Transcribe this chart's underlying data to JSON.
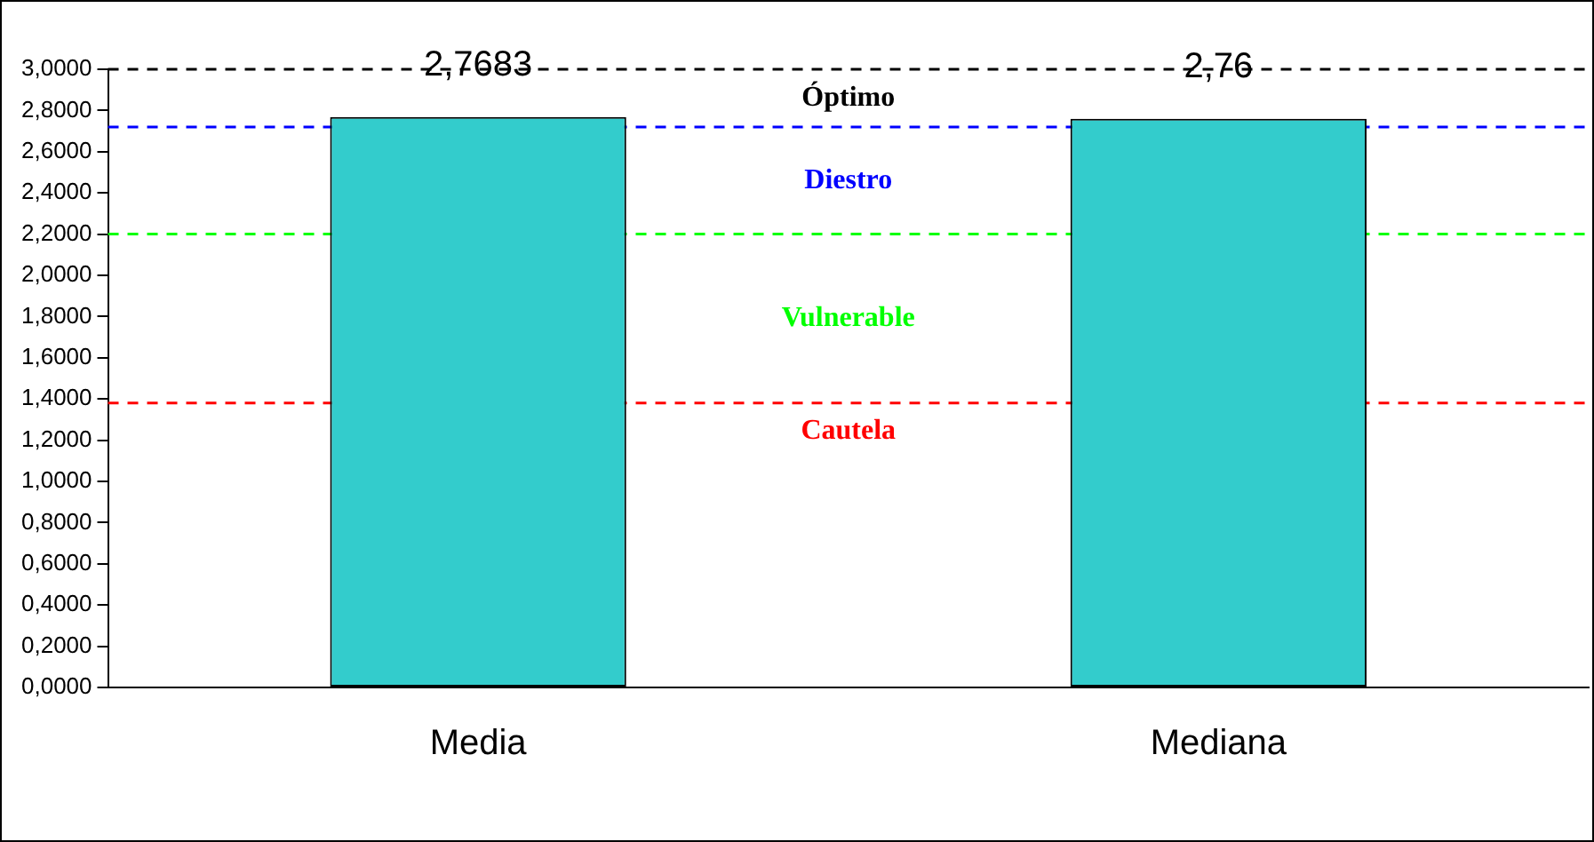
{
  "chart_data": {
    "type": "bar",
    "categories": [
      "Media",
      "Mediana"
    ],
    "values": [
      2.7683,
      2.76
    ],
    "value_labels": [
      "2,7683",
      "2,76"
    ],
    "color": "#33cccc",
    "ylim": [
      0,
      3
    ],
    "yticks": [
      {
        "value": 0,
        "label": "0,0000"
      },
      {
        "value": 0.2,
        "label": "0,2000"
      },
      {
        "value": 0.4,
        "label": "0,4000"
      },
      {
        "value": 0.6,
        "label": "0,6000"
      },
      {
        "value": 0.8,
        "label": "0,8000"
      },
      {
        "value": 1,
        "label": "1,0000"
      },
      {
        "value": 1.2,
        "label": "1,2000"
      },
      {
        "value": 1.4,
        "label": "1,4000"
      },
      {
        "value": 1.6,
        "label": "1,6000"
      },
      {
        "value": 1.8,
        "label": "1,8000"
      },
      {
        "value": 2,
        "label": "2,0000"
      },
      {
        "value": 2.2,
        "label": "2,2000"
      },
      {
        "value": 2.4,
        "label": "2,4000"
      },
      {
        "value": 2.6,
        "label": "2,6000"
      },
      {
        "value": 2.8,
        "label": "2,8000"
      },
      {
        "value": 3,
        "label": "3,0000"
      }
    ],
    "ref_lines": [
      {
        "axis": "y",
        "value": 3,
        "label": "Óptimo",
        "color": "#000000",
        "line_style": "dashed"
      },
      {
        "axis": "y",
        "value": 2.72,
        "label": "Diestro",
        "color": "#0000ff",
        "line_style": "dashed"
      },
      {
        "axis": "y",
        "value": 2.2,
        "label": "Vulnerable",
        "color": "#00ff00",
        "line_style": "dashed"
      },
      {
        "axis": "y",
        "value": 1.38,
        "label": "Cautela",
        "color": "#ff0000",
        "line_style": "dashed"
      }
    ],
    "grid": false,
    "legend": false
  }
}
